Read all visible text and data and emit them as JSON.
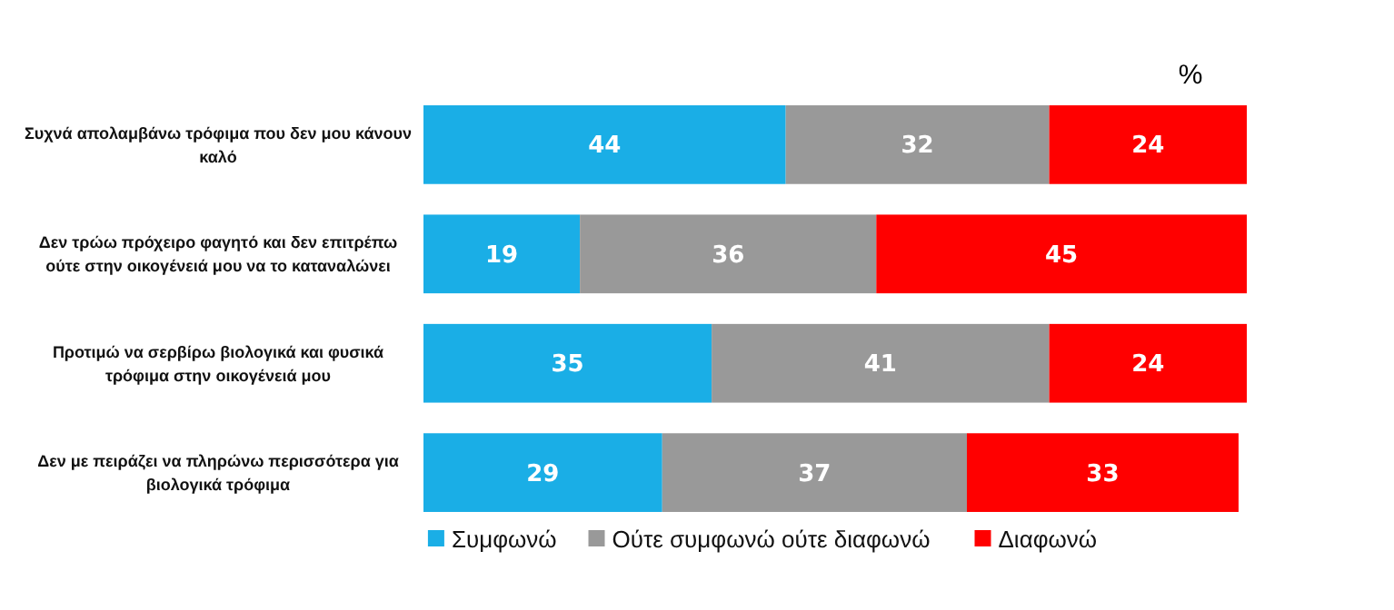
{
  "chart_data": {
    "type": "bar",
    "orientation": "horizontal",
    "stacked": true,
    "title": "%",
    "categories": [
      "Συχνά απολαμβάνω τρόφιμα που δεν μου κάνουν καλό",
      "Δεν τρώω πρόχειρο φαγητό και δεν επιτρέπω ούτε στην οικογένειά μου να το καταναλώνει",
      "Προτιμώ να σερβίρω βιολογικά και φυσικά τρόφιμα στην οικογένειά μου",
      "Δεν με πειράζει να πληρώνω περισσότερα για βιολογικά τρόφιμα"
    ],
    "series": [
      {
        "name": "Συμφωνώ",
        "color": "#1aaee6",
        "values": [
          44,
          19,
          35,
          29
        ]
      },
      {
        "name": "Ούτε συμφωνώ ούτε διαφωνώ",
        "color": "#999999",
        "values": [
          32,
          36,
          41,
          37
        ]
      },
      {
        "name": "Διαφωνώ",
        "color": "#ff0000",
        "values": [
          24,
          45,
          24,
          33
        ]
      }
    ],
    "xlim": [
      0,
      100
    ],
    "data_labels": true,
    "legend": "bottom",
    "tick_labels": "y"
  }
}
